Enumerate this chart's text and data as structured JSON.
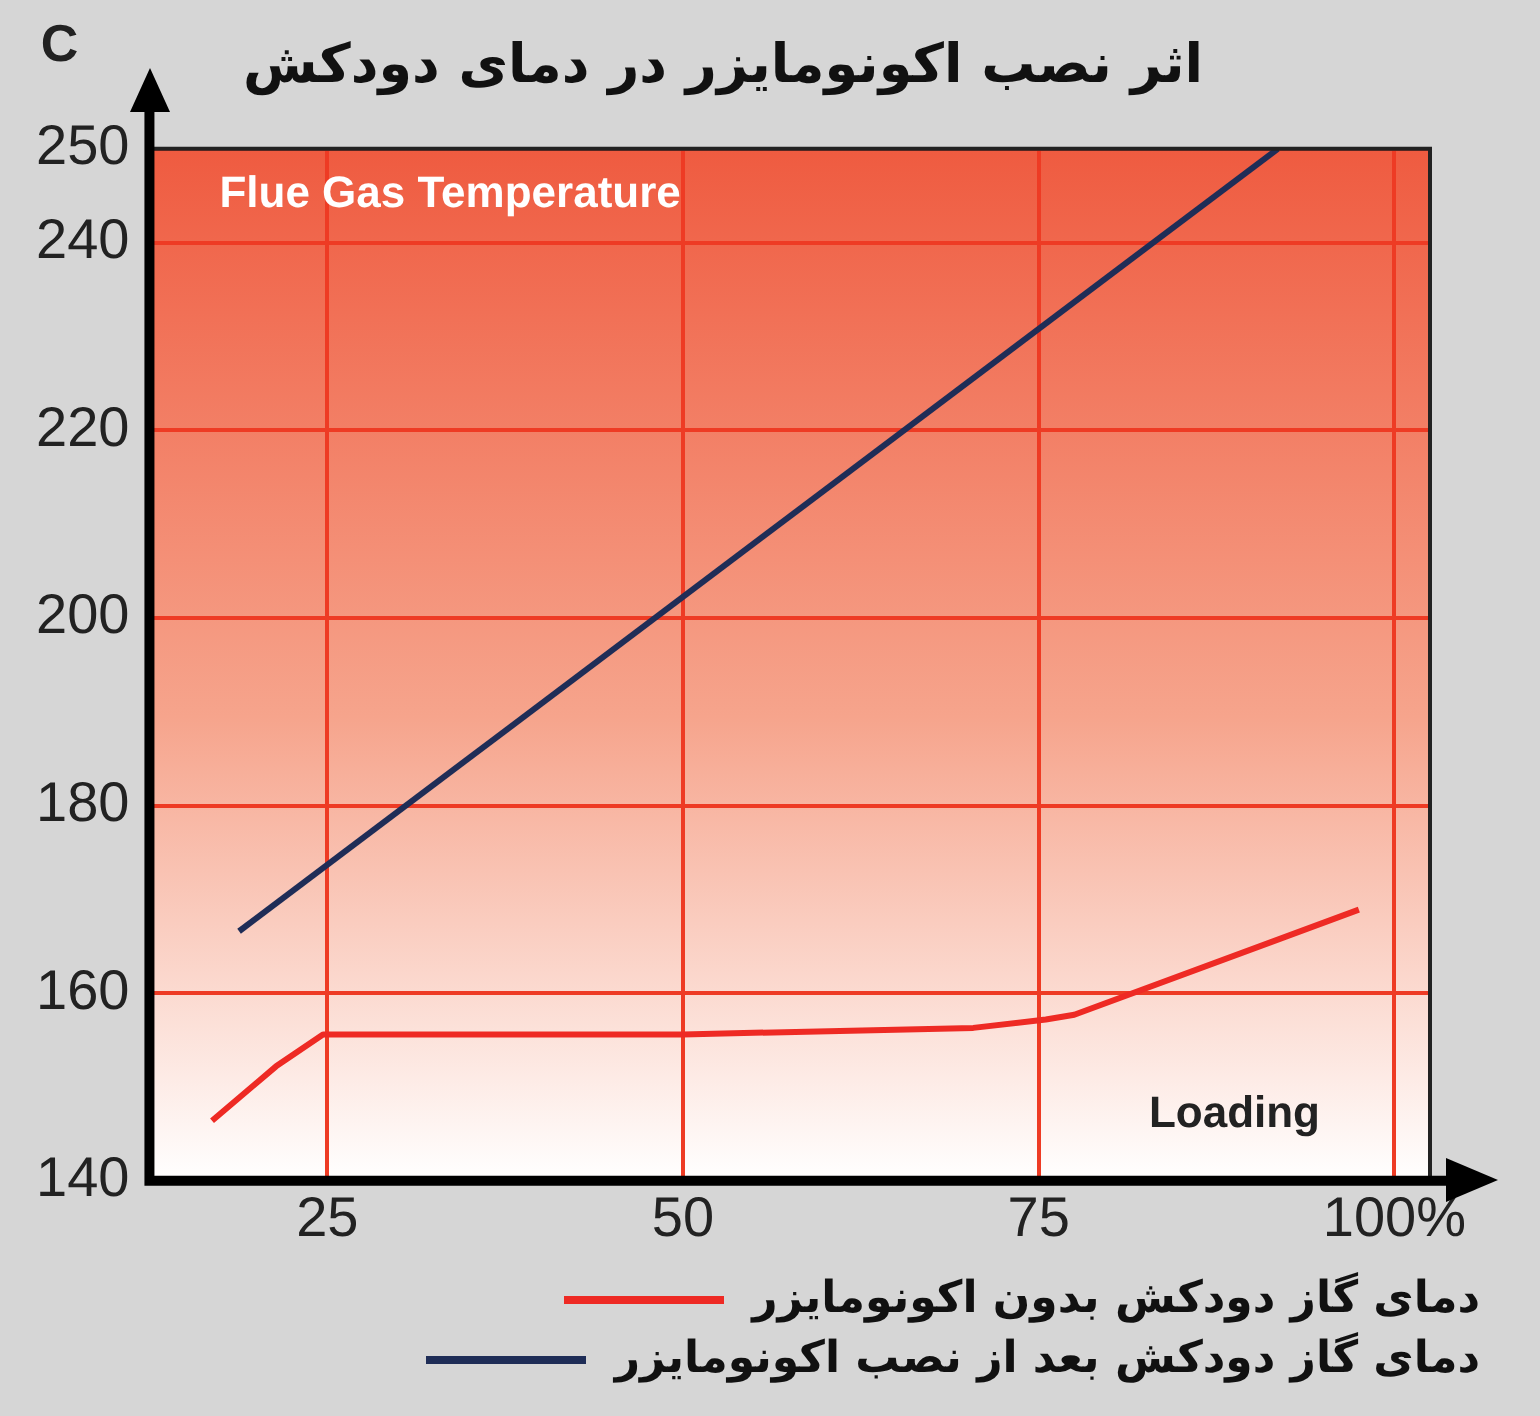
{
  "chart_data": {
    "type": "line",
    "title": "اثر نصب اکونومایزر در دمای دودکش",
    "ylabel": "C",
    "xlabel": "Loading",
    "annotations": [
      "Flue Gas Temperature"
    ],
    "xlim": [
      12.5,
      102.5
    ],
    "xticks": [
      25,
      50,
      75,
      {
        "value": 100,
        "label": "100%"
      }
    ],
    "ylim": [
      140,
      250
    ],
    "yticks": [
      140,
      160,
      180,
      200,
      220,
      240,
      250
    ],
    "grid": true,
    "legend": "bottom",
    "marker": "none",
    "line_style": "solid",
    "series": [
      {
        "name": "دمای گاز دودکش بدون اکونومایزر",
        "color": "#ee2a24",
        "x": [
          16.9,
          21.4,
          24.7,
          50,
          70.4,
          75.5,
          77.5,
          97.5
        ],
        "values": [
          146.4,
          152.2,
          155.6,
          155.6,
          156.3,
          157.2,
          157.7,
          168.9
        ]
      },
      {
        "name": "دمای گاز دودکش بعد از نصب اکونومایزر",
        "color": "#1f2d57",
        "x": [
          18.8,
          91.8
        ],
        "values": [
          166.6,
          250
        ]
      }
    ]
  }
}
